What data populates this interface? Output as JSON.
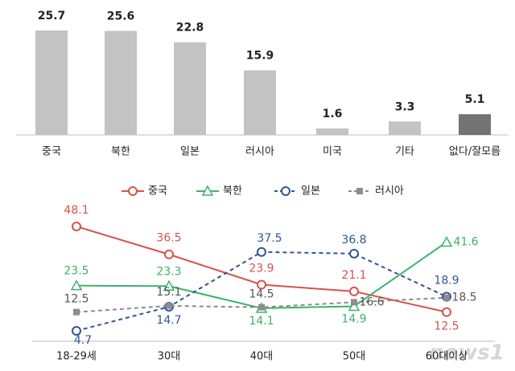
{
  "chart_data": [
    {
      "type": "bar",
      "categories": [
        "중국",
        "북한",
        "일본",
        "러시아",
        "미국",
        "기타",
        "없다/잘모름"
      ],
      "values": [
        25.7,
        25.6,
        22.8,
        15.9,
        1.6,
        3.3,
        5.1
      ],
      "colors": [
        "#c3c3c3",
        "#c3c3c3",
        "#c3c3c3",
        "#c3c3c3",
        "#c3c3c3",
        "#c3c3c3",
        "#737373"
      ]
    },
    {
      "type": "line",
      "categories": [
        "18-29세",
        "30대",
        "40대",
        "50대",
        "60대이상"
      ],
      "series": [
        {
          "name": "중국",
          "color": "#d9524c",
          "marker": "circle",
          "dash": false,
          "values": [
            48.1,
            36.5,
            23.9,
            21.1,
            12.5
          ]
        },
        {
          "name": "북한",
          "color": "#3bb36a",
          "marker": "triangle",
          "dash": false,
          "values": [
            23.5,
            23.3,
            14.1,
            14.9,
            41.6
          ]
        },
        {
          "name": "일본",
          "color": "#2f5597",
          "marker": "circle",
          "dash": true,
          "values": [
            4.7,
            14.7,
            37.5,
            36.8,
            18.9
          ]
        },
        {
          "name": "러시아",
          "color": "#8c8c8c",
          "marker": "square",
          "dash": true,
          "values": [
            12.5,
            15.1,
            14.5,
            16.6,
            18.5
          ]
        }
      ],
      "legend": "top"
    }
  ],
  "watermark": "news1"
}
